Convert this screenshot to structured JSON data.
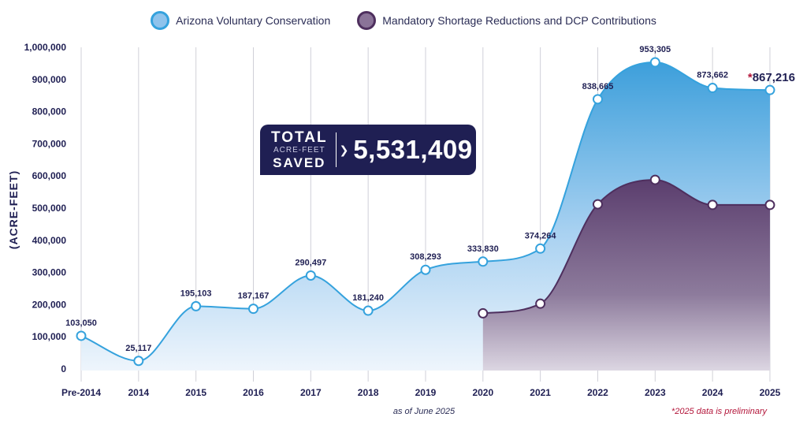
{
  "legend": {
    "series_a": "Arizona Voluntary Conservation",
    "series_b": "Mandatory Shortage Reductions and DCP Contributions"
  },
  "total": {
    "line1": "TOTAL",
    "line2": "ACRE-FEET",
    "line3": "SAVED",
    "value": "5,531,409"
  },
  "footnotes": {
    "as_of": "as of June 2025",
    "preliminary": "*2025 data is preliminary"
  },
  "colors": {
    "navy": "#1f1f53",
    "blue_line": "#35a2dd",
    "purple_line": "#4e2f5e",
    "accent_red": "#b3163a"
  },
  "chart_data": {
    "type": "area",
    "title": "",
    "xlabel": "",
    "ylabel": "(ACRE-FEET)",
    "ylim": [
      0,
      1000000
    ],
    "yticks": [
      0,
      100000,
      200000,
      300000,
      400000,
      500000,
      600000,
      700000,
      800000,
      900000,
      1000000
    ],
    "ytick_labels": [
      "0",
      "100,000",
      "200,000",
      "300,000",
      "400,000",
      "500,000",
      "600,000",
      "700,000",
      "800,000",
      "900,000",
      "1,000,000"
    ],
    "categories": [
      "Pre-2014",
      "2014",
      "2015",
      "2016",
      "2017",
      "2018",
      "2019",
      "2020",
      "2021",
      "2022",
      "2023",
      "2024",
      "2025"
    ],
    "grid": "vertical",
    "legend_position": "top-center",
    "series": [
      {
        "name": "Arizona Voluntary Conservation",
        "values": [
          103050,
          25117,
          195103,
          187167,
          290497,
          181240,
          308293,
          333830,
          374264,
          838665,
          953305,
          873662,
          867216
        ],
        "labels": [
          "103,050",
          "25,117",
          "195,103",
          "187,167",
          "290,497",
          "181,240",
          "308,293",
          "333,830",
          "374,264",
          "838,665",
          "953,305",
          "873,662",
          "867,216"
        ],
        "highlight_last": true,
        "last_label_prefix": "*"
      },
      {
        "name": "Mandatory Shortage Reductions and DCP Contributions",
        "values": [
          null,
          null,
          null,
          null,
          null,
          null,
          null,
          173000,
          203000,
          512000,
          588000,
          510000,
          510000
        ]
      }
    ]
  }
}
